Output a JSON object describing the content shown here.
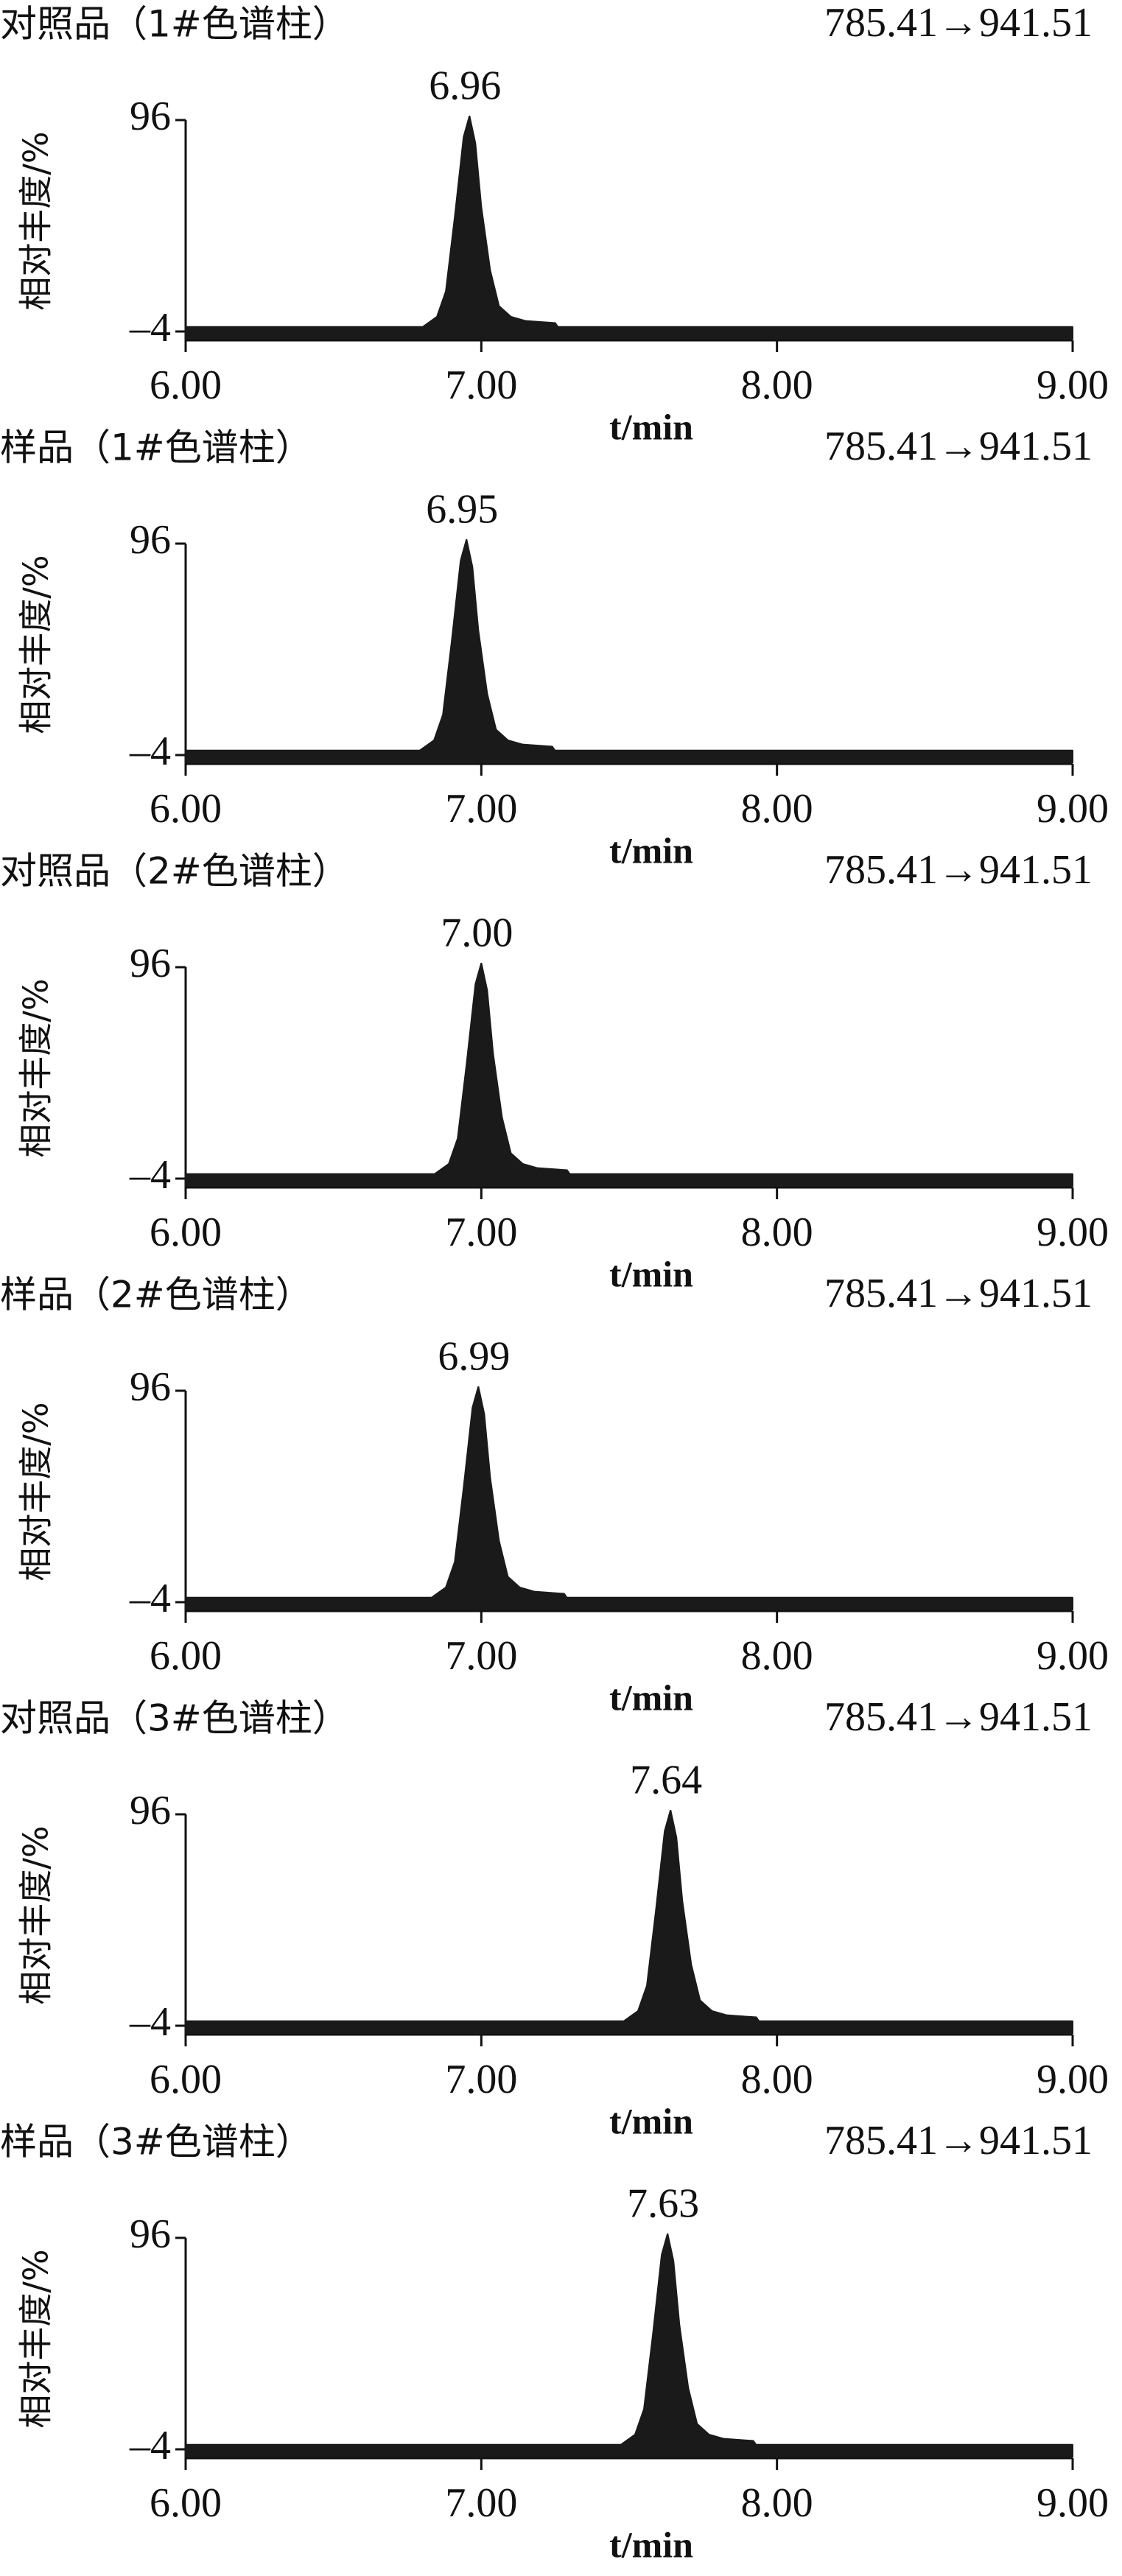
{
  "chart_data": [
    {
      "type": "area",
      "title": "对照品（1#色谱柱）",
      "subtitle": "785.41→941.51",
      "y_label": "相对丰度/%",
      "x_label": "t/min",
      "color": "#1a1a1a",
      "annotation": {
        "value": 6.96,
        "label": "6.96"
      },
      "x": [
        6.0,
        6.8,
        6.85,
        6.88,
        6.91,
        6.94,
        6.96,
        6.98,
        7.0,
        7.03,
        7.06,
        7.1,
        7.15,
        7.25,
        7.26,
        9.0
      ],
      "values": [
        -2,
        -2,
        3,
        15,
        50,
        88,
        98,
        85,
        55,
        25,
        8,
        3,
        1,
        0,
        -2,
        -2
      ],
      "xlim": [
        6,
        9
      ],
      "xticks": [
        {
          "value": 6,
          "label": "6.00"
        },
        {
          "value": 7,
          "label": "7.00"
        },
        {
          "value": 8,
          "label": "8.00"
        },
        {
          "value": 9,
          "label": "9.00"
        }
      ],
      "ylim": [
        -4,
        100
      ],
      "yticks": [
        {
          "value": -4,
          "label": "–4"
        },
        96
      ]
    },
    {
      "type": "area",
      "title": "样品（1#色谱柱）",
      "subtitle": "785.41→941.51",
      "y_label": "相对丰度/%",
      "x_label": "t/min",
      "color": "#1a1a1a",
      "annotation": {
        "value": 6.95,
        "label": "6.95"
      },
      "x": [
        6.0,
        6.79,
        6.84,
        6.87,
        6.9,
        6.93,
        6.95,
        6.97,
        6.99,
        7.02,
        7.05,
        7.09,
        7.14,
        7.24,
        7.25,
        9.0
      ],
      "values": [
        -2,
        -2,
        3,
        15,
        50,
        88,
        98,
        85,
        55,
        25,
        8,
        3,
        1,
        0,
        -2,
        -2
      ],
      "xlim": [
        6,
        9
      ],
      "xticks": [
        {
          "value": 6,
          "label": "6.00"
        },
        {
          "value": 7,
          "label": "7.00"
        },
        {
          "value": 8,
          "label": "8.00"
        },
        {
          "value": 9,
          "label": "9.00"
        }
      ],
      "ylim": [
        -4,
        100
      ],
      "yticks": [
        {
          "value": -4,
          "label": "–4"
        },
        96
      ]
    },
    {
      "type": "area",
      "title": "对照品（2#色谱柱）",
      "subtitle": "785.41→941.51",
      "y_label": "相对丰度/%",
      "x_label": "t/min",
      "color": "#1a1a1a",
      "annotation": {
        "value": 7.0,
        "label": "7.00"
      },
      "x": [
        6.0,
        6.84,
        6.89,
        6.92,
        6.95,
        6.98,
        7.0,
        7.02,
        7.04,
        7.07,
        7.1,
        7.14,
        7.19,
        7.29,
        7.3,
        9.0
      ],
      "values": [
        -2,
        -2,
        3,
        15,
        50,
        88,
        98,
        85,
        55,
        25,
        8,
        3,
        1,
        0,
        -2,
        -2
      ],
      "xlim": [
        6,
        9
      ],
      "xticks": [
        {
          "value": 6,
          "label": "6.00"
        },
        {
          "value": 7,
          "label": "7.00"
        },
        {
          "value": 8,
          "label": "8.00"
        },
        {
          "value": 9,
          "label": "9.00"
        }
      ],
      "ylim": [
        -4,
        100
      ],
      "yticks": [
        {
          "value": -4,
          "label": "–4"
        },
        96
      ]
    },
    {
      "type": "area",
      "title": "样品（2#色谱柱）",
      "subtitle": "785.41→941.51",
      "y_label": "相对丰度/%",
      "x_label": "t/min",
      "color": "#1a1a1a",
      "annotation": {
        "value": 6.99,
        "label": "6.99"
      },
      "x": [
        6.0,
        6.83,
        6.88,
        6.91,
        6.94,
        6.97,
        6.99,
        7.01,
        7.03,
        7.06,
        7.09,
        7.13,
        7.18,
        7.28,
        7.29,
        9.0
      ],
      "values": [
        -2,
        -2,
        3,
        15,
        50,
        88,
        98,
        85,
        55,
        25,
        8,
        3,
        1,
        0,
        -2,
        -2
      ],
      "xlim": [
        6,
        9
      ],
      "xticks": [
        {
          "value": 6,
          "label": "6.00"
        },
        {
          "value": 7,
          "label": "7.00"
        },
        {
          "value": 8,
          "label": "8.00"
        },
        {
          "value": 9,
          "label": "9.00"
        }
      ],
      "ylim": [
        -4,
        100
      ],
      "yticks": [
        {
          "value": -4,
          "label": "–4"
        },
        96
      ]
    },
    {
      "type": "area",
      "title": "对照品（3#色谱柱）",
      "subtitle": "785.41→941.51",
      "y_label": "相对丰度/%",
      "x_label": "t/min",
      "color": "#1a1a1a",
      "annotation": {
        "value": 7.64,
        "label": "7.64"
      },
      "x": [
        6.0,
        7.48,
        7.53,
        7.56,
        7.59,
        7.62,
        7.64,
        7.66,
        7.68,
        7.71,
        7.74,
        7.78,
        7.83,
        7.93,
        7.94,
        9.0
      ],
      "values": [
        -2,
        -2,
        3,
        15,
        50,
        88,
        98,
        85,
        55,
        25,
        8,
        3,
        1,
        0,
        -2,
        -2
      ],
      "xlim": [
        6,
        9
      ],
      "xticks": [
        {
          "value": 6,
          "label": "6.00"
        },
        {
          "value": 7,
          "label": "7.00"
        },
        {
          "value": 8,
          "label": "8.00"
        },
        {
          "value": 9,
          "label": "9.00"
        }
      ],
      "ylim": [
        -4,
        100
      ],
      "yticks": [
        {
          "value": -4,
          "label": "–4"
        },
        96
      ]
    },
    {
      "type": "area",
      "title": "样品（3#色谱柱）",
      "subtitle": "785.41→941.51",
      "y_label": "相对丰度/%",
      "x_label": "t/min",
      "color": "#1a1a1a",
      "annotation": {
        "value": 7.63,
        "label": "7.63"
      },
      "x": [
        6.0,
        7.47,
        7.52,
        7.55,
        7.58,
        7.61,
        7.63,
        7.65,
        7.67,
        7.7,
        7.73,
        7.77,
        7.82,
        7.92,
        7.93,
        9.0
      ],
      "values": [
        -2,
        -2,
        3,
        15,
        50,
        88,
        98,
        85,
        55,
        25,
        8,
        3,
        1,
        0,
        -2,
        -2
      ],
      "xlim": [
        6,
        9
      ],
      "xticks": [
        {
          "value": 6,
          "label": "6.00"
        },
        {
          "value": 7,
          "label": "7.00"
        },
        {
          "value": 8,
          "label": "8.00"
        },
        {
          "value": 9,
          "label": "9.00"
        }
      ],
      "ylim": [
        -4,
        100
      ],
      "yticks": [
        {
          "value": -4,
          "label": "–4"
        },
        96
      ]
    }
  ]
}
